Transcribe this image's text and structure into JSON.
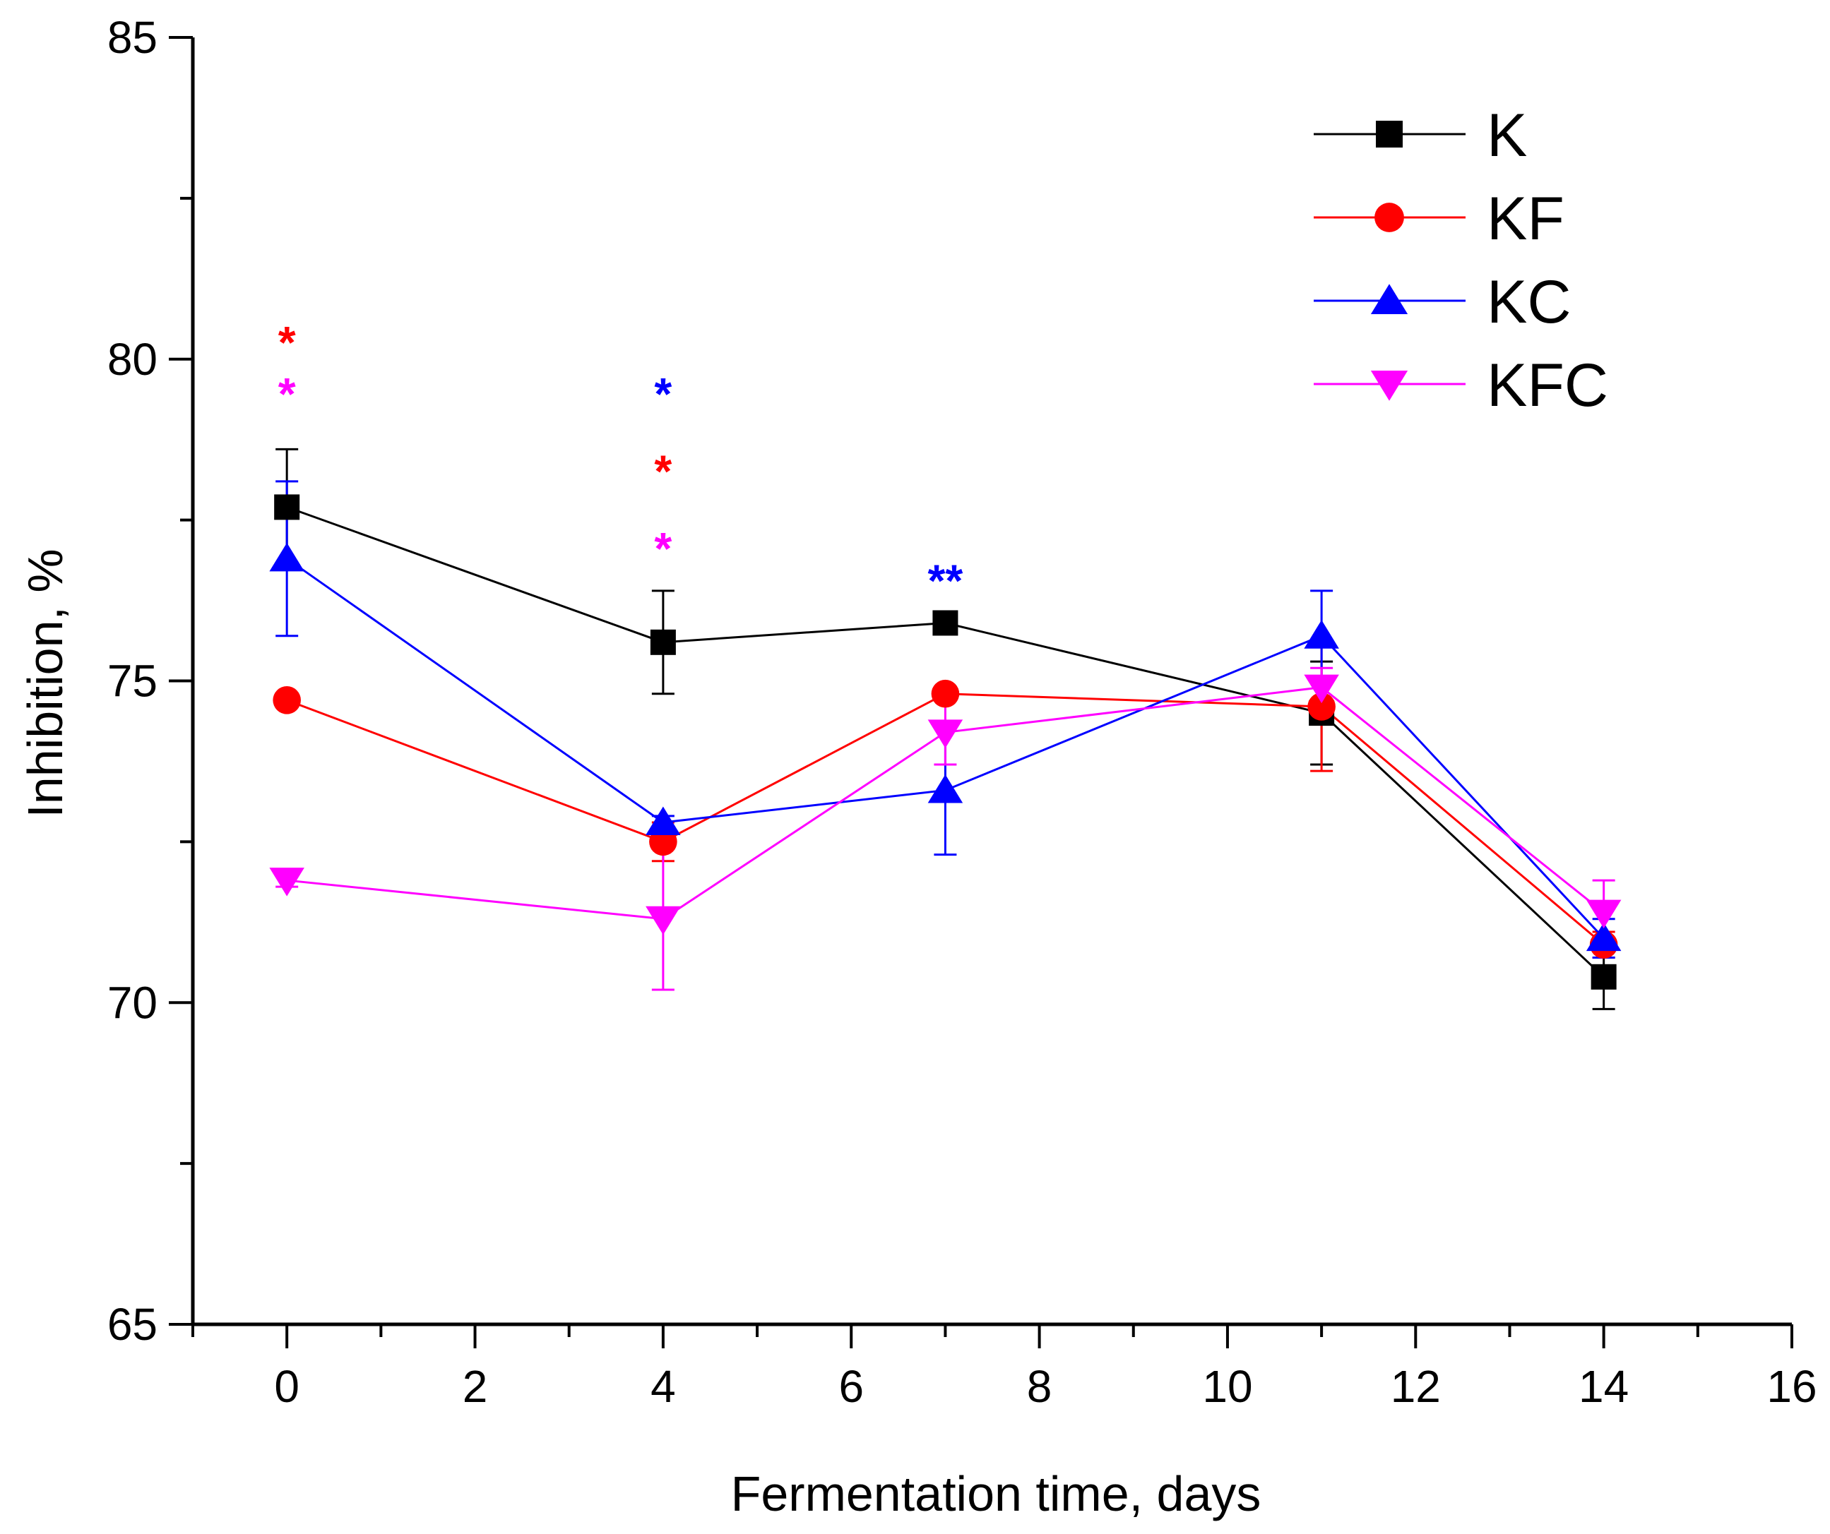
{
  "chart_data": {
    "type": "line",
    "title": "",
    "xlabel": "Fermentation time, days",
    "ylabel": "Inhibition, %",
    "xlim": [
      -1,
      16
    ],
    "ylim": [
      65,
      85
    ],
    "x_ticks": [
      0,
      2,
      4,
      6,
      8,
      10,
      12,
      14,
      16
    ],
    "y_ticks": [
      65,
      70,
      75,
      80,
      85
    ],
    "x_tick_labels": [
      "0",
      "2",
      "4",
      "6",
      "8",
      "10",
      "12",
      "14",
      "16"
    ],
    "y_tick_labels": [
      "65",
      "70",
      "75",
      "80",
      "85"
    ],
    "grid": false,
    "legend_position": "top-right",
    "x": [
      0,
      4,
      7,
      11,
      14
    ],
    "series": [
      {
        "name": "K",
        "color": "#000000",
        "marker": "square",
        "values": [
          77.7,
          75.6,
          75.9,
          74.5,
          70.4
        ],
        "errors": [
          0.9,
          0.8,
          0.1,
          0.8,
          0.5
        ]
      },
      {
        "name": "KF",
        "color": "#ff0000",
        "marker": "circle",
        "values": [
          74.7,
          72.5,
          74.8,
          74.6,
          70.9
        ],
        "errors": [
          0.1,
          0.3,
          0.1,
          1.0,
          0.2
        ]
      },
      {
        "name": "KC",
        "color": "#0000ff",
        "marker": "triangle-up",
        "values": [
          76.9,
          72.8,
          73.3,
          75.7,
          71.0
        ],
        "errors": [
          1.2,
          0.1,
          1.0,
          0.7,
          0.3
        ]
      },
      {
        "name": "KFC",
        "color": "#ff00ff",
        "marker": "triangle-down",
        "values": [
          71.9,
          71.3,
          74.2,
          74.9,
          71.4
        ],
        "errors": [
          0.1,
          1.1,
          0.5,
          0.3,
          0.5
        ]
      }
    ],
    "annotations": [
      {
        "x": 0,
        "y": 80.5,
        "text": "*",
        "color": "#ff0000"
      },
      {
        "x": 0,
        "y": 79.7,
        "text": "*",
        "color": "#ff00ff"
      },
      {
        "x": 4,
        "y": 79.7,
        "text": "*",
        "color": "#0000ff"
      },
      {
        "x": 4,
        "y": 78.5,
        "text": "*",
        "color": "#ff0000"
      },
      {
        "x": 4,
        "y": 77.3,
        "text": "*",
        "color": "#ff00ff"
      },
      {
        "x": 7,
        "y": 76.8,
        "text": "**",
        "color": "#0000ff"
      }
    ]
  }
}
